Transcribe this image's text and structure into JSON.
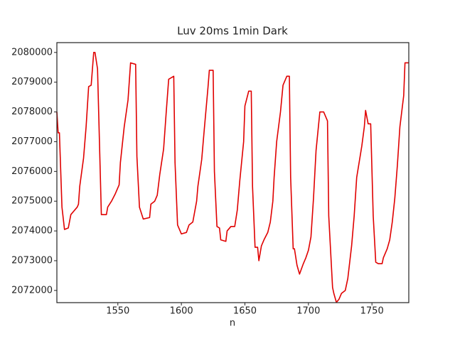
{
  "chart_data": {
    "type": "line",
    "title": "Luv 20ms 1min Dark",
    "xlabel": "n",
    "x": [
      1502,
      1503,
      1504,
      1506,
      1508,
      1511,
      1513,
      1515,
      1518,
      1519,
      1520,
      1523,
      1525,
      1527,
      1529,
      1531,
      1532,
      1534,
      1536,
      1537,
      1541,
      1542,
      1545,
      1548,
      1551,
      1552,
      1555,
      1558,
      1560,
      1564,
      1565,
      1567,
      1570,
      1575,
      1576,
      1579,
      1581,
      1583,
      1586,
      1588,
      1590,
      1594,
      1595,
      1597,
      1600,
      1604,
      1606,
      1609,
      1612,
      1613,
      1616,
      1618,
      1621,
      1622,
      1625,
      1626,
      1628,
      1630,
      1631,
      1635,
      1636,
      1639,
      1642,
      1644,
      1646,
      1649,
      1650,
      1653,
      1655,
      1656,
      1658,
      1660,
      1661,
      1663,
      1665,
      1668,
      1670,
      1672,
      1673,
      1675,
      1678,
      1680,
      1683,
      1685,
      1686,
      1688,
      1689,
      1691,
      1693,
      1696,
      1698,
      1700,
      1702,
      1704,
      1706,
      1709,
      1712,
      1715,
      1716,
      1719,
      1720,
      1722,
      1724,
      1726,
      1729,
      1731,
      1734,
      1736,
      1738,
      1742,
      1744,
      1745,
      1747,
      1749,
      1751,
      1753,
      1755,
      1758,
      1759,
      1762,
      1764,
      1766,
      1768,
      1770,
      1772,
      1775,
      1776,
      1779
    ],
    "series": [
      {
        "name": "Luv",
        "color": "#e00000",
        "values": [
          2078000,
          2077300,
          2077300,
          2074800,
          2074050,
          2074100,
          2074550,
          2074650,
          2074800,
          2074900,
          2075500,
          2076450,
          2077500,
          2078850,
          2078900,
          2080000,
          2080000,
          2079450,
          2076200,
          2074550,
          2074550,
          2074800,
          2075000,
          2075250,
          2075550,
          2076300,
          2077500,
          2078400,
          2079650,
          2079600,
          2076500,
          2074800,
          2074400,
          2074450,
          2074900,
          2075000,
          2075200,
          2075900,
          2076750,
          2077950,
          2079100,
          2079200,
          2076300,
          2074200,
          2073900,
          2073950,
          2074200,
          2074300,
          2075000,
          2075500,
          2076400,
          2077400,
          2078850,
          2079400,
          2079400,
          2076000,
          2074150,
          2074100,
          2073700,
          2073650,
          2074000,
          2074150,
          2074150,
          2074700,
          2075700,
          2077000,
          2078200,
          2078700,
          2078700,
          2075500,
          2073450,
          2073450,
          2073000,
          2073500,
          2073700,
          2073950,
          2074300,
          2075000,
          2075800,
          2077000,
          2078000,
          2078900,
          2079200,
          2079200,
          2075800,
          2073400,
          2073400,
          2072850,
          2072550,
          2072900,
          2073100,
          2073350,
          2073800,
          2075100,
          2076700,
          2078000,
          2078000,
          2077700,
          2074500,
          2072100,
          2071900,
          2071600,
          2071700,
          2071900,
          2072000,
          2072400,
          2073500,
          2074500,
          2075800,
          2076850,
          2077500,
          2078050,
          2077600,
          2077600,
          2074500,
          2072950,
          2072900,
          2072900,
          2073100,
          2073400,
          2073700,
          2074300,
          2075100,
          2076200,
          2077500,
          2078550,
          2079650,
          2079650
        ]
      }
    ],
    "xlim": [
      1502,
      1779
    ],
    "ylim": [
      2071590,
      2080330
    ],
    "xticks": [
      1550,
      1600,
      1650,
      1700,
      1750
    ],
    "yticks": [
      2072000,
      2073000,
      2074000,
      2075000,
      2076000,
      2077000,
      2078000,
      2079000,
      2080000
    ]
  }
}
